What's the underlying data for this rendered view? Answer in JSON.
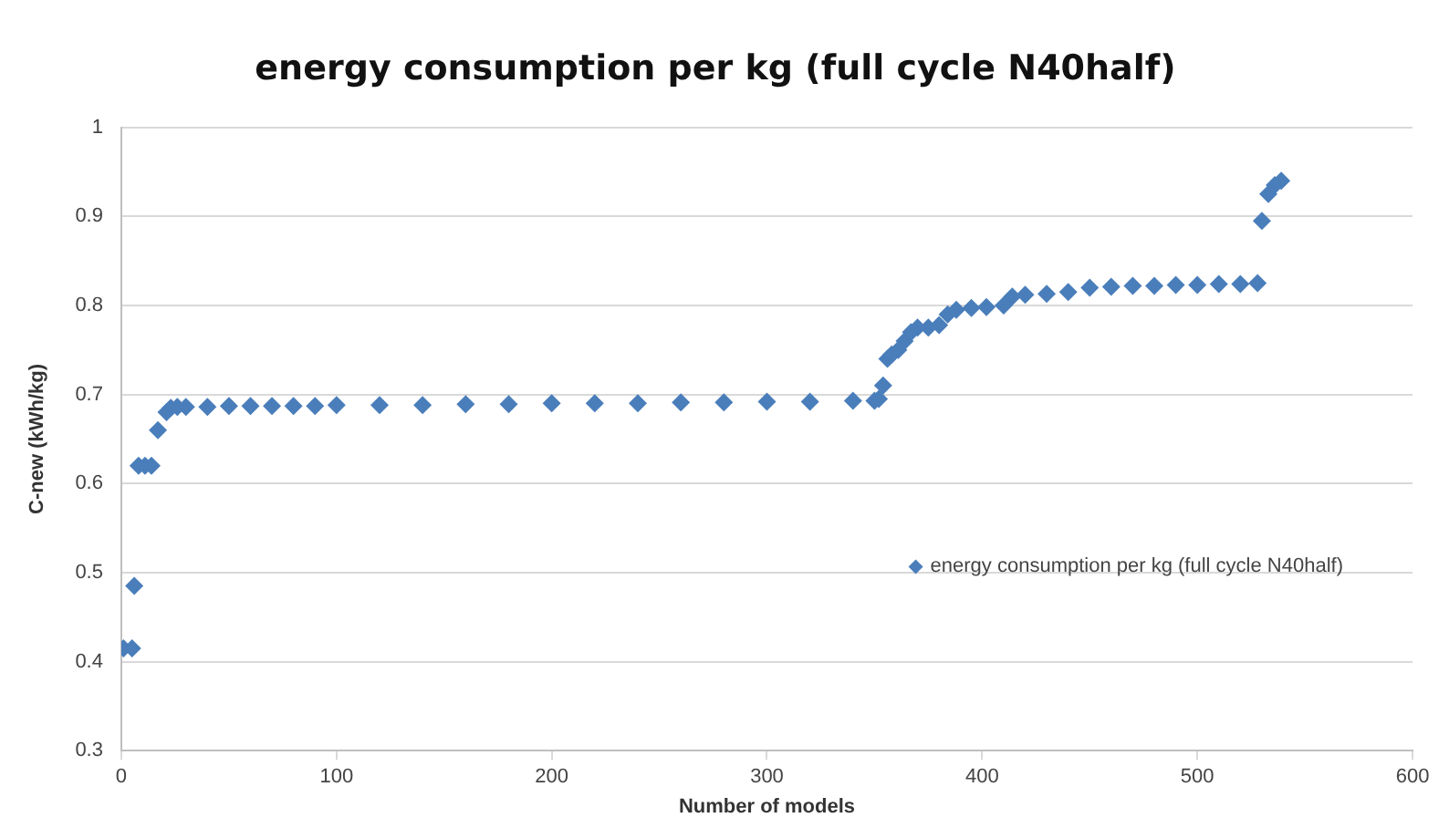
{
  "chart_data": {
    "type": "scatter",
    "title": "energy consumption per kg (full cycle N40half)",
    "xlabel": "Number of models",
    "ylabel": "C-new (kWh/kg)",
    "xlim": [
      0,
      600
    ],
    "xticks": [
      0,
      100,
      200,
      300,
      400,
      500,
      600
    ],
    "ylim": [
      0.3,
      1
    ],
    "yticks": [
      0.3,
      0.4,
      0.5,
      0.6,
      0.7,
      0.8,
      0.9,
      1
    ],
    "grid": "y",
    "legend": "right",
    "marker": "diamond",
    "series": [
      {
        "name": "energy consumption per kg (full cycle N40half)",
        "color": "#4a7ebb",
        "x": [
          1,
          5,
          6,
          8,
          11,
          14,
          17,
          21,
          23,
          26,
          30,
          40,
          50,
          60,
          70,
          80,
          90,
          100,
          120,
          140,
          160,
          180,
          200,
          220,
          240,
          260,
          280,
          300,
          320,
          340,
          350,
          352,
          354,
          356,
          358,
          361,
          364,
          367,
          370,
          375,
          380,
          384,
          388,
          395,
          402,
          410,
          414,
          420,
          430,
          440,
          450,
          460,
          470,
          480,
          490,
          500,
          510,
          520,
          528,
          530,
          533,
          536,
          539
        ],
        "values": [
          0.415,
          0.415,
          0.485,
          0.62,
          0.62,
          0.62,
          0.66,
          0.68,
          0.685,
          0.686,
          0.686,
          0.686,
          0.687,
          0.687,
          0.687,
          0.687,
          0.687,
          0.688,
          0.688,
          0.688,
          0.689,
          0.689,
          0.69,
          0.69,
          0.69,
          0.691,
          0.691,
          0.692,
          0.692,
          0.693,
          0.693,
          0.695,
          0.71,
          0.74,
          0.745,
          0.75,
          0.76,
          0.77,
          0.775,
          0.775,
          0.778,
          0.79,
          0.795,
          0.797,
          0.798,
          0.8,
          0.81,
          0.812,
          0.813,
          0.815,
          0.82,
          0.821,
          0.822,
          0.822,
          0.823,
          0.823,
          0.824,
          0.824,
          0.825,
          0.895,
          0.925,
          0.935,
          0.94
        ]
      }
    ]
  }
}
